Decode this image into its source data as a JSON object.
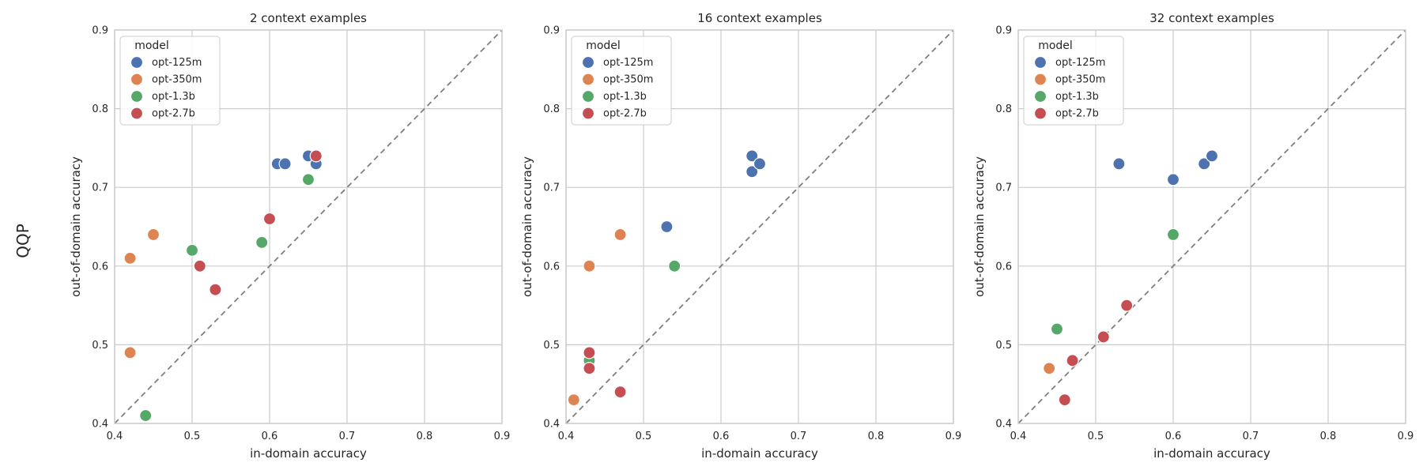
{
  "figure": {
    "row_label": "QQP"
  },
  "colors": {
    "opt-125m": "#4c72b0",
    "opt-350m": "#dd8452",
    "opt-1.3b": "#55a868",
    "opt-2.7b": "#c44e52"
  },
  "chart_data": [
    {
      "type": "scatter",
      "title": "2 context examples",
      "xlabel": "in-domain accuracy",
      "ylabel": "out-of-domain accuracy",
      "xlim": [
        0.4,
        0.9
      ],
      "ylim": [
        0.4,
        0.9
      ],
      "xticks": [
        "0.4",
        "0.5",
        "0.6",
        "0.7",
        "0.8",
        "0.9"
      ],
      "yticks": [
        "0.4",
        "0.5",
        "0.6",
        "0.7",
        "0.8",
        "0.9"
      ],
      "grid": true,
      "diagonal": true,
      "legend": {
        "title": "model",
        "position": "upper-left"
      },
      "series": [
        {
          "name": "opt-125m",
          "points": [
            [
              0.61,
              0.73
            ],
            [
              0.62,
              0.73
            ],
            [
              0.65,
              0.74
            ],
            [
              0.66,
              0.73
            ]
          ]
        },
        {
          "name": "opt-350m",
          "points": [
            [
              0.42,
              0.61
            ],
            [
              0.45,
              0.64
            ],
            [
              0.42,
              0.49
            ]
          ]
        },
        {
          "name": "opt-1.3b",
          "points": [
            [
              0.44,
              0.41
            ],
            [
              0.5,
              0.62
            ],
            [
              0.59,
              0.63
            ],
            [
              0.65,
              0.71
            ]
          ]
        },
        {
          "name": "opt-2.7b",
          "points": [
            [
              0.51,
              0.6
            ],
            [
              0.53,
              0.57
            ],
            [
              0.6,
              0.66
            ],
            [
              0.66,
              0.74
            ]
          ]
        }
      ]
    },
    {
      "type": "scatter",
      "title": "16 context examples",
      "xlabel": "in-domain accuracy",
      "ylabel": "out-of-domain accuracy",
      "xlim": [
        0.4,
        0.9
      ],
      "ylim": [
        0.4,
        0.9
      ],
      "xticks": [
        "0.4",
        "0.5",
        "0.6",
        "0.7",
        "0.8",
        "0.9"
      ],
      "yticks": [
        "0.4",
        "0.5",
        "0.6",
        "0.7",
        "0.8",
        "0.9"
      ],
      "grid": true,
      "diagonal": true,
      "legend": {
        "title": "model",
        "position": "upper-left"
      },
      "series": [
        {
          "name": "opt-125m",
          "points": [
            [
              0.53,
              0.65
            ],
            [
              0.64,
              0.74
            ],
            [
              0.64,
              0.72
            ],
            [
              0.65,
              0.73
            ]
          ]
        },
        {
          "name": "opt-350m",
          "points": [
            [
              0.41,
              0.43
            ],
            [
              0.43,
              0.6
            ],
            [
              0.47,
              0.64
            ]
          ]
        },
        {
          "name": "opt-1.3b",
          "points": [
            [
              0.43,
              0.48
            ],
            [
              0.54,
              0.6
            ]
          ]
        },
        {
          "name": "opt-2.7b",
          "points": [
            [
              0.43,
              0.49
            ],
            [
              0.43,
              0.47
            ],
            [
              0.47,
              0.44
            ]
          ]
        }
      ]
    },
    {
      "type": "scatter",
      "title": "32 context examples",
      "xlabel": "in-domain accuracy",
      "ylabel": "out-of-domain accuracy",
      "xlim": [
        0.4,
        0.9
      ],
      "ylim": [
        0.4,
        0.9
      ],
      "xticks": [
        "0.4",
        "0.5",
        "0.6",
        "0.7",
        "0.8",
        "0.9"
      ],
      "yticks": [
        "0.4",
        "0.5",
        "0.6",
        "0.7",
        "0.8",
        "0.9"
      ],
      "grid": true,
      "diagonal": true,
      "legend": {
        "title": "model",
        "position": "upper-left"
      },
      "series": [
        {
          "name": "opt-125m",
          "points": [
            [
              0.53,
              0.73
            ],
            [
              0.6,
              0.71
            ],
            [
              0.64,
              0.73
            ],
            [
              0.65,
              0.74
            ]
          ]
        },
        {
          "name": "opt-350m",
          "points": [
            [
              0.44,
              0.47
            ]
          ]
        },
        {
          "name": "opt-1.3b",
          "points": [
            [
              0.45,
              0.52
            ],
            [
              0.6,
              0.64
            ]
          ]
        },
        {
          "name": "opt-2.7b",
          "points": [
            [
              0.46,
              0.43
            ],
            [
              0.47,
              0.48
            ],
            [
              0.51,
              0.51
            ],
            [
              0.54,
              0.55
            ]
          ]
        }
      ]
    }
  ]
}
